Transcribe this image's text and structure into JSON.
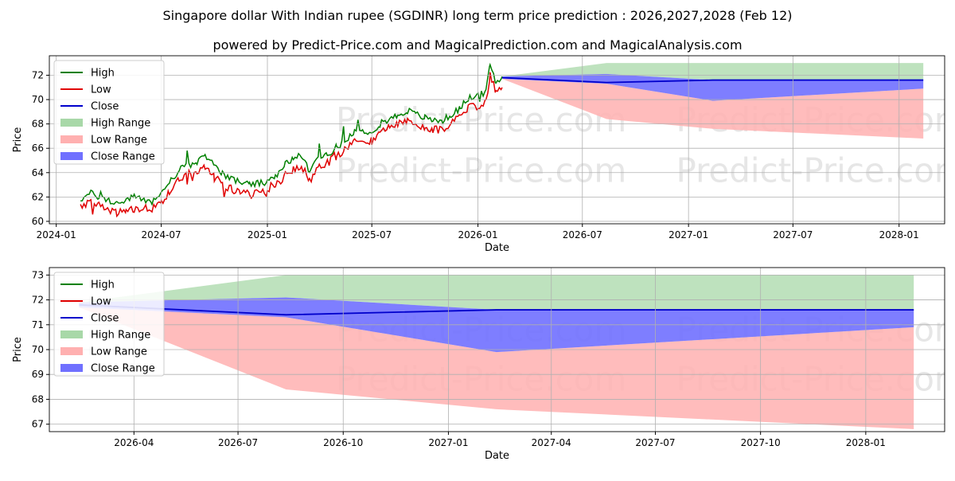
{
  "title": "Singapore dollar With Indian rupee (SGDINR) long term price prediction : 2026,2027,2028 (Feb 12)",
  "subtitle": "powered by Predict-Price.com and MagicalPrediction.com and MagicalAnalysis.com",
  "watermark": "Predict-Price.com",
  "colors": {
    "high": "#008000",
    "low": "#e00000",
    "close": "#0000cc",
    "high_range": "#a8d8a8",
    "low_range": "#ffb0b0",
    "close_range": "#7070ff",
    "grid": "#b0b0b0"
  },
  "chart_data": [
    {
      "type": "line",
      "name": "full-history-chart",
      "xlabel": "Date",
      "ylabel": "Price",
      "x_range": [
        "2023-12-20",
        "2028-03-20"
      ],
      "ylim": [
        59.8,
        73.6
      ],
      "x_ticks": [
        {
          "date": "2024-01-01",
          "label": "2024-01"
        },
        {
          "date": "2024-07-01",
          "label": "2024-07"
        },
        {
          "date": "2025-01-01",
          "label": "2025-01"
        },
        {
          "date": "2025-07-01",
          "label": "2025-07"
        },
        {
          "date": "2026-01-01",
          "label": "2026-01"
        },
        {
          "date": "2026-07-01",
          "label": "2026-07"
        },
        {
          "date": "2027-01-01",
          "label": "2027-01"
        },
        {
          "date": "2027-07-01",
          "label": "2027-07"
        },
        {
          "date": "2028-01-01",
          "label": "2028-01"
        }
      ],
      "y_ticks": [
        60,
        62,
        64,
        66,
        68,
        70,
        72
      ],
      "legend": [
        "High",
        "Low",
        "Close",
        "High Range",
        "Low Range",
        "Close Range"
      ],
      "legend_position": "upper-left",
      "history": {
        "dates": [
          "2024-02-12",
          "2024-03-01",
          "2024-03-15",
          "2024-04-01",
          "2024-04-15",
          "2024-05-01",
          "2024-05-15",
          "2024-06-01",
          "2024-06-15",
          "2024-07-01",
          "2024-07-15",
          "2024-08-01",
          "2024-08-15",
          "2024-09-01",
          "2024-09-15",
          "2024-10-01",
          "2024-10-15",
          "2024-11-01",
          "2024-11-15",
          "2024-12-01",
          "2024-12-15",
          "2025-01-01",
          "2025-01-15",
          "2025-02-01",
          "2025-02-15",
          "2025-03-01",
          "2025-03-15",
          "2025-04-01",
          "2025-04-15",
          "2025-05-01",
          "2025-05-15",
          "2025-06-01",
          "2025-06-15",
          "2025-07-01",
          "2025-07-15",
          "2025-08-01",
          "2025-08-15",
          "2025-09-01",
          "2025-09-15",
          "2025-10-01",
          "2025-10-15",
          "2025-11-01",
          "2025-11-15",
          "2025-12-01",
          "2025-12-15",
          "2026-01-01",
          "2026-01-15",
          "2026-01-22",
          "2026-02-01",
          "2026-02-12"
        ],
        "high": [
          61.8,
          62.3,
          62.0,
          61.7,
          61.5,
          61.7,
          62.0,
          61.8,
          61.6,
          62.3,
          63.2,
          64.2,
          64.6,
          64.7,
          65.5,
          64.6,
          64.0,
          63.4,
          63.3,
          63.0,
          63.1,
          63.2,
          63.6,
          64.7,
          65.1,
          65.4,
          64.2,
          65.3,
          65.5,
          66.1,
          66.7,
          67.3,
          67.4,
          67.4,
          68.0,
          68.4,
          68.7,
          69.1,
          68.8,
          68.5,
          68.3,
          68.3,
          68.7,
          69.3,
          70.1,
          70.3,
          70.6,
          72.9,
          71.4,
          71.9
        ],
        "low": [
          61.2,
          61.5,
          61.3,
          61.0,
          60.7,
          60.8,
          61.0,
          61.1,
          61.0,
          61.4,
          62.5,
          63.5,
          64.0,
          64.0,
          64.6,
          63.8,
          63.1,
          62.6,
          62.4,
          62.2,
          62.3,
          62.4,
          62.9,
          63.8,
          64.3,
          64.6,
          63.3,
          64.4,
          64.8,
          65.3,
          65.8,
          66.5,
          66.6,
          66.6,
          67.3,
          67.8,
          68.1,
          68.3,
          68.0,
          67.6,
          67.5,
          67.6,
          68.0,
          68.6,
          69.3,
          69.5,
          69.9,
          72.1,
          70.6,
          71.0
        ],
        "close": [
          null,
          null,
          null,
          null,
          null,
          null,
          null,
          null,
          null,
          null,
          null,
          null,
          null,
          null,
          null,
          null,
          null,
          null,
          null,
          null,
          null,
          null,
          null,
          null,
          null,
          null,
          null,
          null,
          null,
          null,
          null,
          null,
          null,
          null,
          null,
          null,
          null,
          null,
          null,
          null,
          null,
          null,
          null,
          null,
          null,
          null,
          null,
          null,
          null,
          71.8
        ]
      },
      "forecast": {
        "dates": [
          "2026-02-12",
          "2026-08-12",
          "2027-02-12",
          "2028-02-12"
        ],
        "high_upper": [
          71.9,
          73.0,
          73.0,
          73.0
        ],
        "close": [
          71.8,
          71.4,
          71.6,
          71.6
        ],
        "close_upper": [
          71.9,
          72.1,
          71.6,
          71.6
        ],
        "close_lower": [
          71.7,
          71.3,
          69.9,
          70.9
        ],
        "low_lower": [
          71.7,
          68.4,
          67.6,
          66.8
        ]
      }
    },
    {
      "type": "line",
      "name": "forecast-zoom-chart",
      "xlabel": "Date",
      "ylabel": "Price",
      "x_range": [
        "2026-01-17",
        "2028-03-10"
      ],
      "ylim": [
        66.7,
        73.3
      ],
      "x_ticks": [
        {
          "date": "2026-04-01",
          "label": "2026-04"
        },
        {
          "date": "2026-07-01",
          "label": "2026-07"
        },
        {
          "date": "2026-10-01",
          "label": "2026-10"
        },
        {
          "date": "2027-01-01",
          "label": "2027-01"
        },
        {
          "date": "2027-04-01",
          "label": "2027-04"
        },
        {
          "date": "2027-07-01",
          "label": "2027-07"
        },
        {
          "date": "2027-10-01",
          "label": "2027-10"
        },
        {
          "date": "2028-01-01",
          "label": "2028-01"
        }
      ],
      "y_ticks": [
        67,
        68,
        69,
        70,
        71,
        72,
        73
      ],
      "legend": [
        "High",
        "Low",
        "Close",
        "High Range",
        "Low Range",
        "Close Range"
      ],
      "legend_position": "upper-left",
      "forecast": {
        "dates": [
          "2026-02-12",
          "2026-08-12",
          "2027-02-12",
          "2028-02-12"
        ],
        "high_upper": [
          71.9,
          73.0,
          73.0,
          73.0
        ],
        "close": [
          71.8,
          71.4,
          71.6,
          71.6
        ],
        "close_upper": [
          71.9,
          72.1,
          71.6,
          71.6
        ],
        "close_lower": [
          71.7,
          71.3,
          69.9,
          70.9
        ],
        "low_lower": [
          71.7,
          68.4,
          67.6,
          66.8
        ]
      }
    }
  ]
}
